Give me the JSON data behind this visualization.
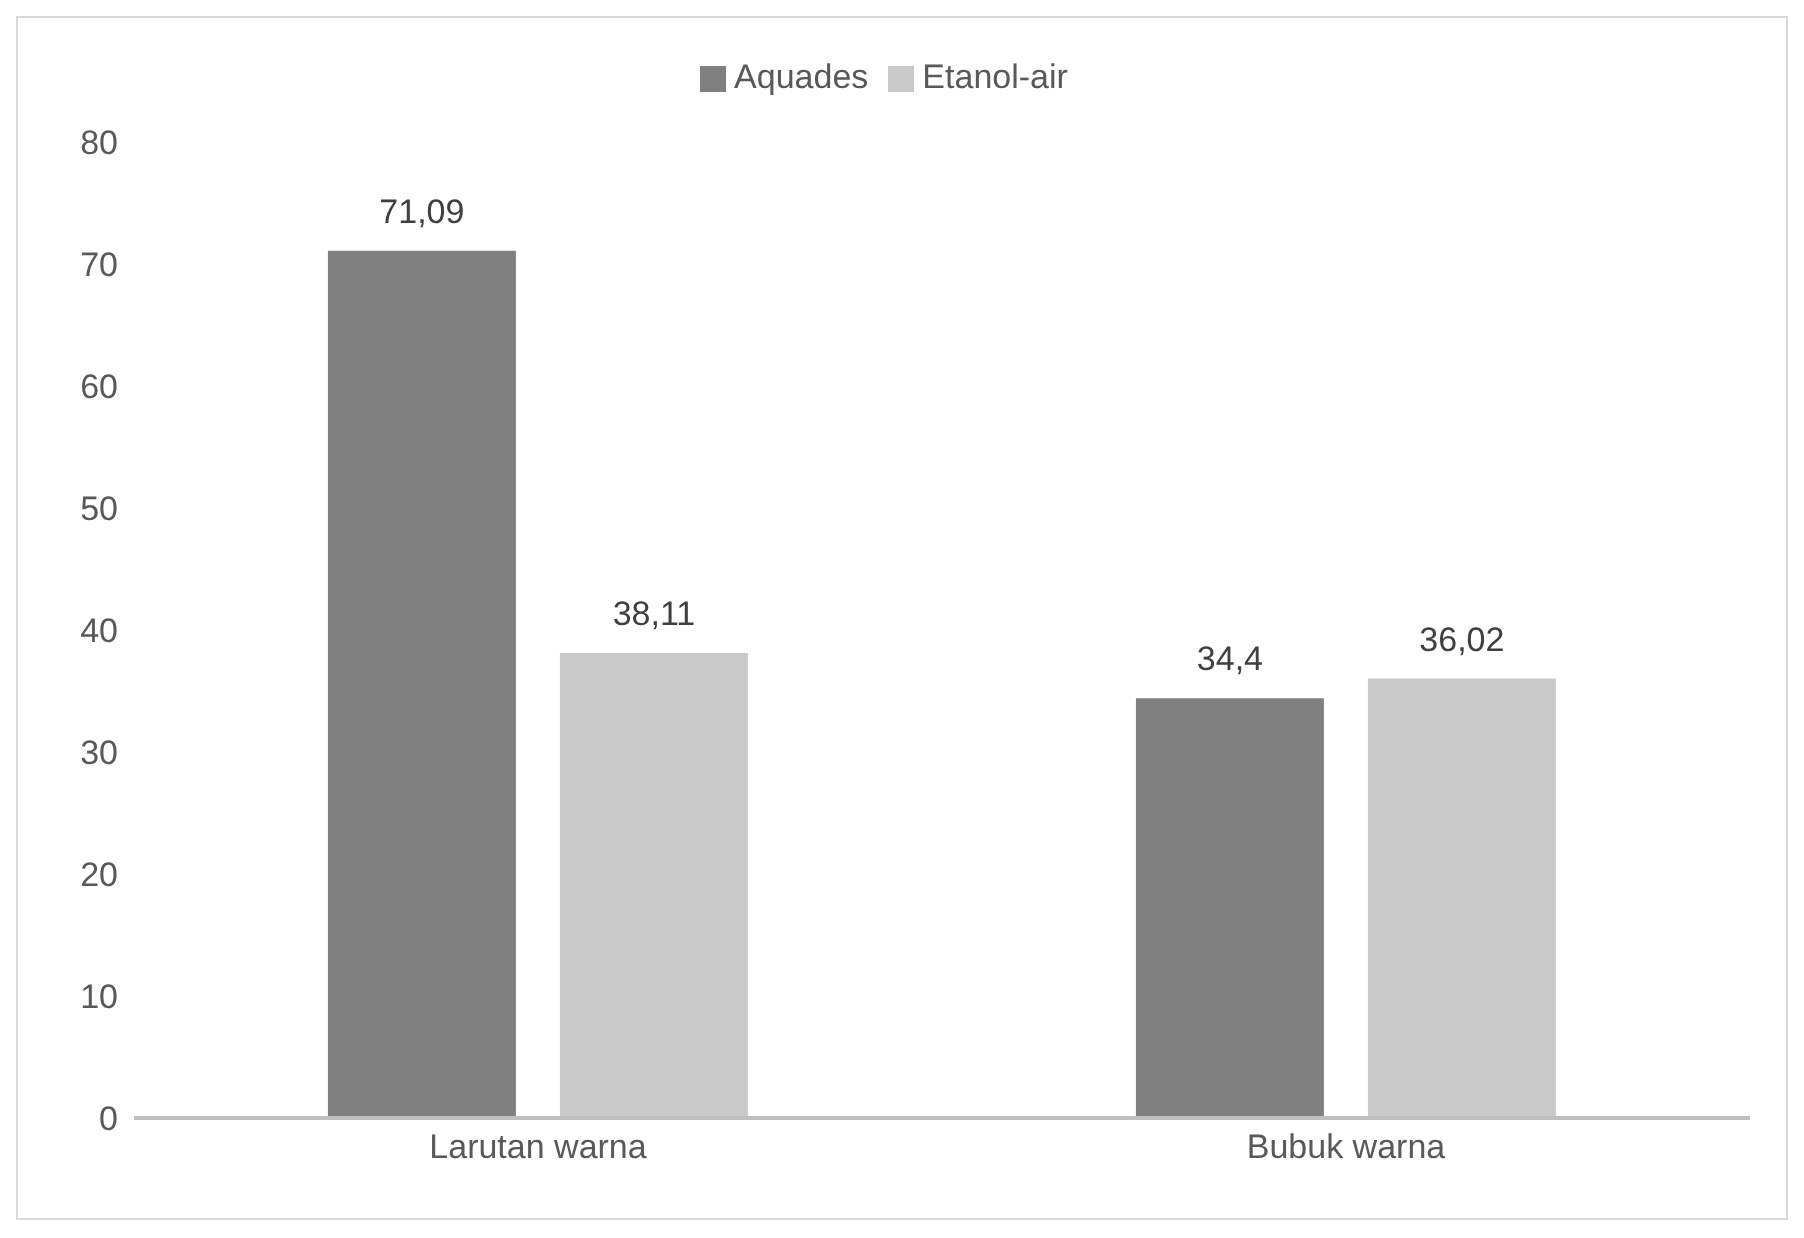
{
  "chart_data": {
    "type": "bar",
    "categories": [
      "Larutan warna",
      "Bubuk warna"
    ],
    "series": [
      {
        "name": "Aquades",
        "color": "#808080",
        "values": [
          71.09,
          34.4
        ],
        "value_labels": [
          "71,09",
          "34,4"
        ]
      },
      {
        "name": "Etanol-air",
        "color": "#c9c9c9",
        "values": [
          38.11,
          36.02
        ],
        "value_labels": [
          "38,11",
          "36,02"
        ]
      }
    ],
    "ylim": [
      0,
      80
    ],
    "yticks": [
      0,
      10,
      20,
      30,
      40,
      50,
      60,
      70,
      80
    ],
    "grid": false,
    "legend": "top"
  }
}
